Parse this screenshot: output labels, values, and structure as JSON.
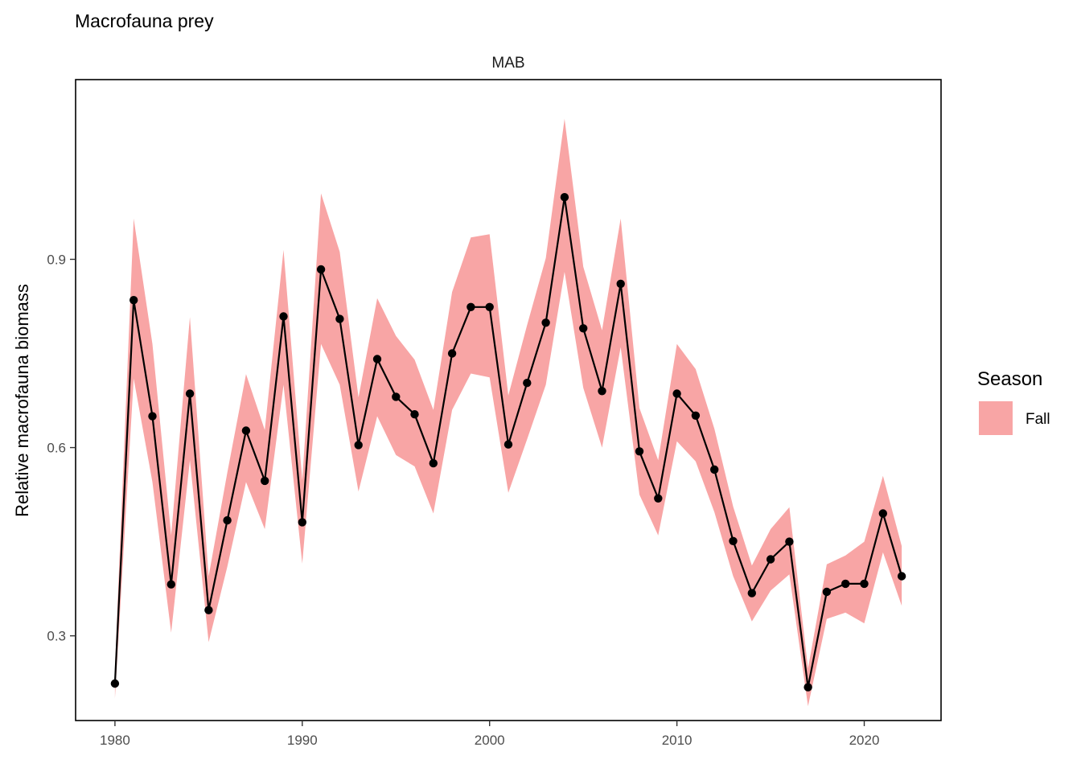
{
  "chart_data": {
    "type": "line",
    "title": "Macrofauna prey",
    "facet": "MAB",
    "xlabel": "",
    "ylabel": "Relative macrofauna biomass",
    "xlim": [
      1977.9,
      2024.1
    ],
    "ylim": [
      0.165,
      1.1864
    ],
    "x_ticks": [
      1980,
      1990,
      2000,
      2010,
      2020
    ],
    "y_ticks": [
      0.3,
      0.6,
      0.9
    ],
    "x_tick_labels": [
      "1980",
      "1990",
      "2000",
      "2010",
      "2020"
    ],
    "y_tick_labels": [
      "0.3",
      "0.6",
      "0.9"
    ],
    "grid": false,
    "legend": {
      "title": "Season",
      "position": "right"
    },
    "colors": {
      "ribbon": "#F8A5A5",
      "line": "#000000",
      "points": "#000000"
    },
    "series": [
      {
        "name": "Fall",
        "x": [
          1980,
          1981,
          1982,
          1983,
          1984,
          1985,
          1986,
          1987,
          1988,
          1989,
          1990,
          1991,
          1992,
          1993,
          1994,
          1995,
          1996,
          1997,
          1998,
          1999,
          2000,
          2001,
          2002,
          2003,
          2004,
          2005,
          2006,
          2007,
          2008,
          2009,
          2010,
          2011,
          2012,
          2013,
          2014,
          2015,
          2016,
          2017,
          2018,
          2019,
          2020,
          2021,
          2022
        ],
        "y": [
          0.224,
          0.835,
          0.65,
          0.382,
          0.686,
          0.341,
          0.484,
          0.627,
          0.547,
          0.809,
          0.481,
          0.884,
          0.805,
          0.604,
          0.741,
          0.681,
          0.653,
          0.575,
          0.75,
          0.824,
          0.824,
          0.605,
          0.703,
          0.799,
          0.999,
          0.79,
          0.69,
          0.861,
          0.594,
          0.519,
          0.686,
          0.651,
          0.565,
          0.451,
          0.368,
          0.422,
          0.45,
          0.218,
          0.37,
          0.383,
          0.383,
          0.495,
          0.395
        ],
        "lower": [
          0.2,
          0.71,
          0.545,
          0.305,
          0.58,
          0.29,
          0.41,
          0.545,
          0.47,
          0.7,
          0.415,
          0.765,
          0.7,
          0.53,
          0.65,
          0.588,
          0.57,
          0.495,
          0.66,
          0.718,
          0.712,
          0.528,
          0.613,
          0.7,
          0.88,
          0.695,
          0.6,
          0.76,
          0.525,
          0.46,
          0.61,
          0.578,
          0.497,
          0.395,
          0.323,
          0.372,
          0.398,
          0.188,
          0.327,
          0.337,
          0.32,
          0.433,
          0.348
        ],
        "upper": [
          0.25,
          0.965,
          0.765,
          0.46,
          0.808,
          0.395,
          0.56,
          0.717,
          0.628,
          0.915,
          0.548,
          1.005,
          0.912,
          0.68,
          0.838,
          0.778,
          0.74,
          0.66,
          0.848,
          0.935,
          0.94,
          0.683,
          0.795,
          0.902,
          1.124,
          0.888,
          0.787,
          0.965,
          0.663,
          0.58,
          0.765,
          0.725,
          0.63,
          0.506,
          0.412,
          0.47,
          0.505,
          0.248,
          0.414,
          0.428,
          0.45,
          0.555,
          0.443
        ]
      }
    ]
  }
}
